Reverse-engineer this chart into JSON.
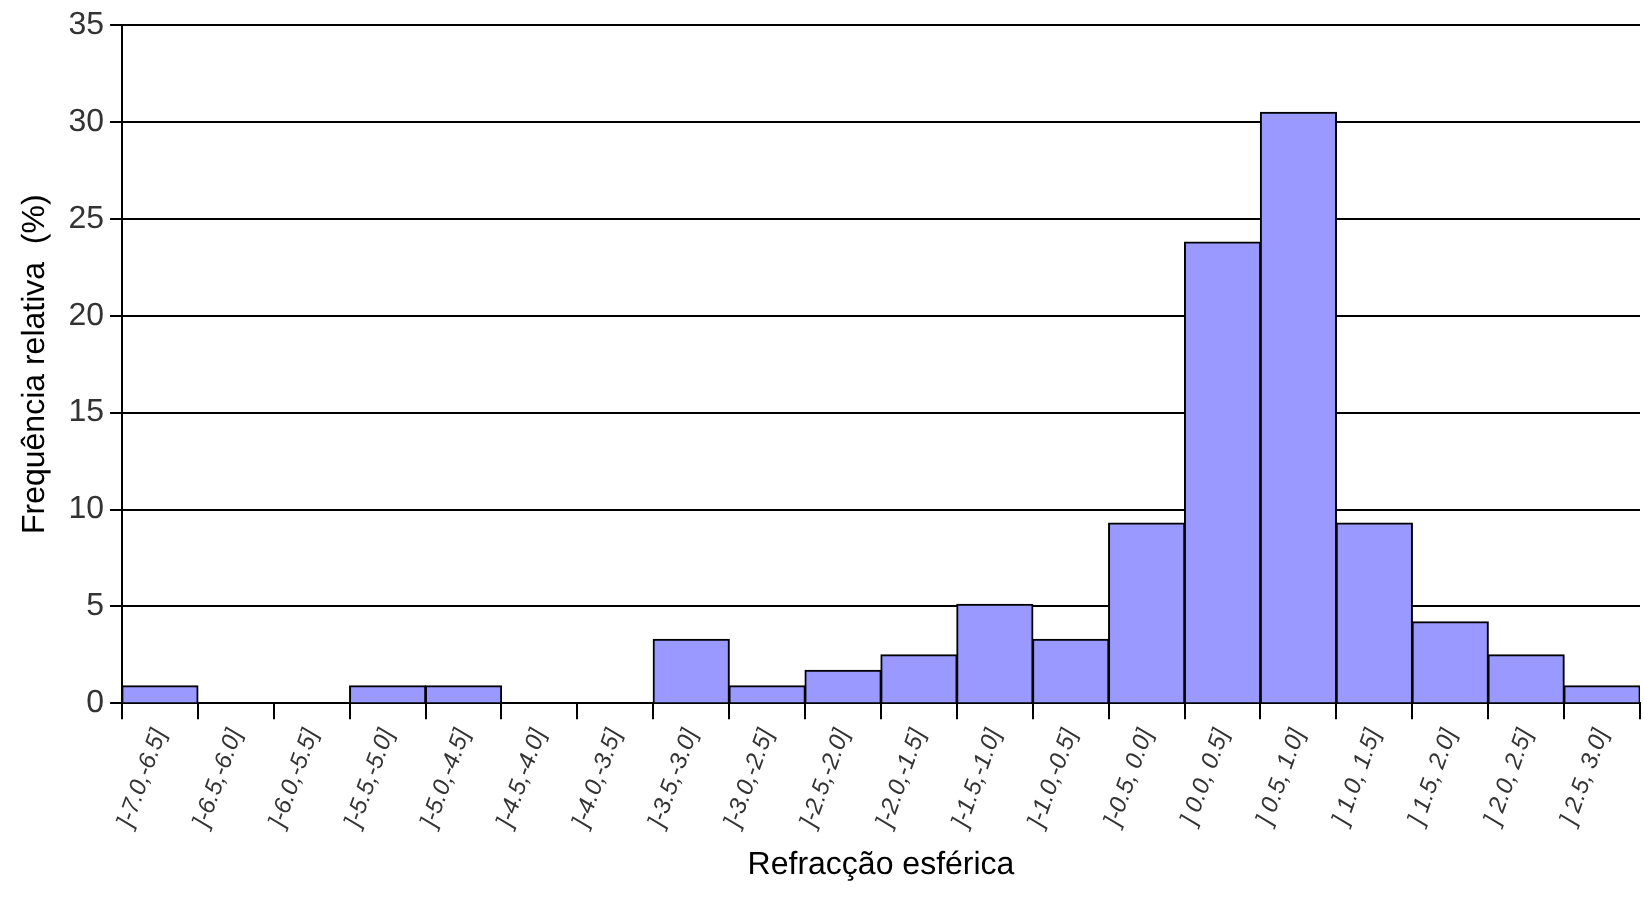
{
  "chart_data": {
    "type": "bar",
    "xlabel": "Refracção esférica",
    "ylabel": "Frequência relativa  (%)",
    "categories": [
      "]-7.0,-6.5]",
      "]-6.5,-6.0]",
      "]-6.0,-5.5]",
      "]-5.5,-5.0]",
      "]-5.0,-4.5]",
      "]-4.5,-4.0]",
      "]-4.0,-3.5]",
      "]-3.5,-3.0]",
      "]-3.0,-2.5]",
      "]-2.5,-2.0]",
      "]-2.0,-1.5]",
      "]-1.5,-1.0]",
      "]-1.0,-0.5]",
      "]-0.5, 0.0]",
      "] 0.0, 0.5]",
      "] 0.5, 1.0]",
      "] 1.0, 1.5]",
      "] 1.5, 2.0]",
      "] 2.0, 2.5]",
      "] 2.5, 3.0]"
    ],
    "values": [
      0.9,
      0,
      0,
      0.9,
      0.9,
      0,
      0,
      3.3,
      0.9,
      1.7,
      2.5,
      5.1,
      3.3,
      9.3,
      23.8,
      30.5,
      9.3,
      4.2,
      2.5,
      0.9
    ],
    "color": "#9999ff",
    "ylim": [
      0,
      35
    ],
    "yticks": [
      0,
      5,
      10,
      15,
      20,
      25,
      30,
      35
    ],
    "grid": "y",
    "legend": false
  }
}
